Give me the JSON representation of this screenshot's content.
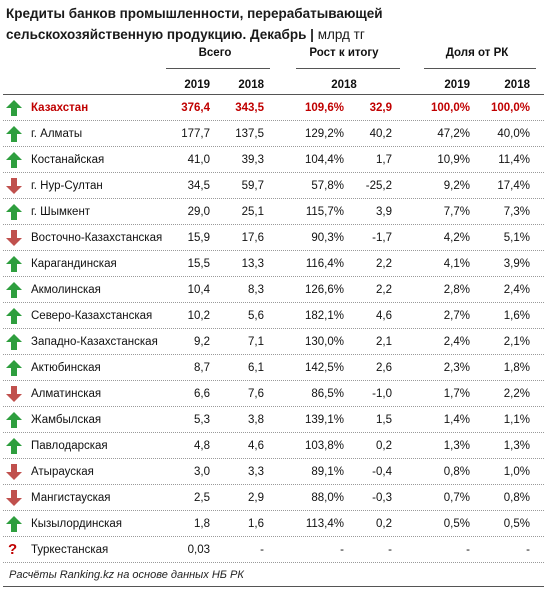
{
  "title": {
    "text": "Кредиты банков промышленности, перерабатывающей сельскохозяйственную продукцию. Декабрь",
    "separator": " | ",
    "unit": "млрд тг"
  },
  "headers": {
    "group_total": "Всего",
    "group_growth": "Рост к итогу",
    "group_share": "Доля от РК",
    "y2019": "2019",
    "y2018": "2018",
    "growth_year": "2018",
    "share_2019": "2019",
    "share_2018": "2018"
  },
  "rows": [
    {
      "name": "Казахстан",
      "v2019": "376,4",
      "v2018": "343,5",
      "growth": "109,6%",
      "diff": "32,9",
      "share2019": "100,0%",
      "share2018": "100,0%",
      "arrow": "up",
      "highlight": true
    },
    {
      "name": "г. Алматы",
      "v2019": "177,7",
      "v2018": "137,5",
      "growth": "129,2%",
      "diff": "40,2",
      "share2019": "47,2%",
      "share2018": "40,0%",
      "arrow": "up"
    },
    {
      "name": "Костанайская",
      "v2019": "41,0",
      "v2018": "39,3",
      "growth": "104,4%",
      "diff": "1,7",
      "share2019": "10,9%",
      "share2018": "11,4%",
      "arrow": "up"
    },
    {
      "name": "г. Нур-Султан",
      "v2019": "34,5",
      "v2018": "59,7",
      "growth": "57,8%",
      "diff": "-25,2",
      "share2019": "9,2%",
      "share2018": "17,4%",
      "arrow": "down"
    },
    {
      "name": "г. Шымкент",
      "v2019": "29,0",
      "v2018": "25,1",
      "growth": "115,7%",
      "diff": "3,9",
      "share2019": "7,7%",
      "share2018": "7,3%",
      "arrow": "up"
    },
    {
      "name": "Восточно-Казахстанская",
      "v2019": "15,9",
      "v2018": "17,6",
      "growth": "90,3%",
      "diff": "-1,7",
      "share2019": "4,2%",
      "share2018": "5,1%",
      "arrow": "down"
    },
    {
      "name": "Карагандинская",
      "v2019": "15,5",
      "v2018": "13,3",
      "growth": "116,4%",
      "diff": "2,2",
      "share2019": "4,1%",
      "share2018": "3,9%",
      "arrow": "up"
    },
    {
      "name": "Акмолинская",
      "v2019": "10,4",
      "v2018": "8,3",
      "growth": "126,6%",
      "diff": "2,2",
      "share2019": "2,8%",
      "share2018": "2,4%",
      "arrow": "up"
    },
    {
      "name": "Северо-Казахстанская",
      "v2019": "10,2",
      "v2018": "5,6",
      "growth": "182,1%",
      "diff": "4,6",
      "share2019": "2,7%",
      "share2018": "1,6%",
      "arrow": "up"
    },
    {
      "name": "Западно-Казахстанская",
      "v2019": "9,2",
      "v2018": "7,1",
      "growth": "130,0%",
      "diff": "2,1",
      "share2019": "2,4%",
      "share2018": "2,1%",
      "arrow": "up"
    },
    {
      "name": "Актюбинская",
      "v2019": "8,7",
      "v2018": "6,1",
      "growth": "142,5%",
      "diff": "2,6",
      "share2019": "2,3%",
      "share2018": "1,8%",
      "arrow": "up"
    },
    {
      "name": "Алматинская",
      "v2019": "6,6",
      "v2018": "7,6",
      "growth": "86,5%",
      "diff": "-1,0",
      "share2019": "1,7%",
      "share2018": "2,2%",
      "arrow": "down"
    },
    {
      "name": "Жамбылская",
      "v2019": "5,3",
      "v2018": "3,8",
      "growth": "139,1%",
      "diff": "1,5",
      "share2019": "1,4%",
      "share2018": "1,1%",
      "arrow": "up"
    },
    {
      "name": "Павлодарская",
      "v2019": "4,8",
      "v2018": "4,6",
      "growth": "103,8%",
      "diff": "0,2",
      "share2019": "1,3%",
      "share2018": "1,3%",
      "arrow": "up"
    },
    {
      "name": "Атырауская",
      "v2019": "3,0",
      "v2018": "3,3",
      "growth": "89,1%",
      "diff": "-0,4",
      "share2019": "0,8%",
      "share2018": "1,0%",
      "arrow": "down"
    },
    {
      "name": "Мангистауская",
      "v2019": "2,5",
      "v2018": "2,9",
      "growth": "88,0%",
      "diff": "-0,3",
      "share2019": "0,7%",
      "share2018": "0,8%",
      "arrow": "down"
    },
    {
      "name": "Кызылординская",
      "v2019": "1,8",
      "v2018": "1,6",
      "growth": "113,4%",
      "diff": "0,2",
      "share2019": "0,5%",
      "share2018": "0,5%",
      "arrow": "up"
    },
    {
      "name": "Туркестанская",
      "v2019": "0,03",
      "v2018": "-",
      "growth": "-",
      "diff": "-",
      "share2019": "-",
      "share2018": "-",
      "arrow": "unknown"
    }
  ],
  "footer": "Расчёты Ranking.kz на основе данных НБ РК",
  "colors": {
    "up": "#2e9e3e",
    "down": "#c0504d",
    "highlight": "#c00000",
    "unknown": "#c00000"
  },
  "icons": {
    "up": "arrow-up-icon",
    "down": "arrow-down-icon",
    "unknown": "question-mark-icon"
  }
}
